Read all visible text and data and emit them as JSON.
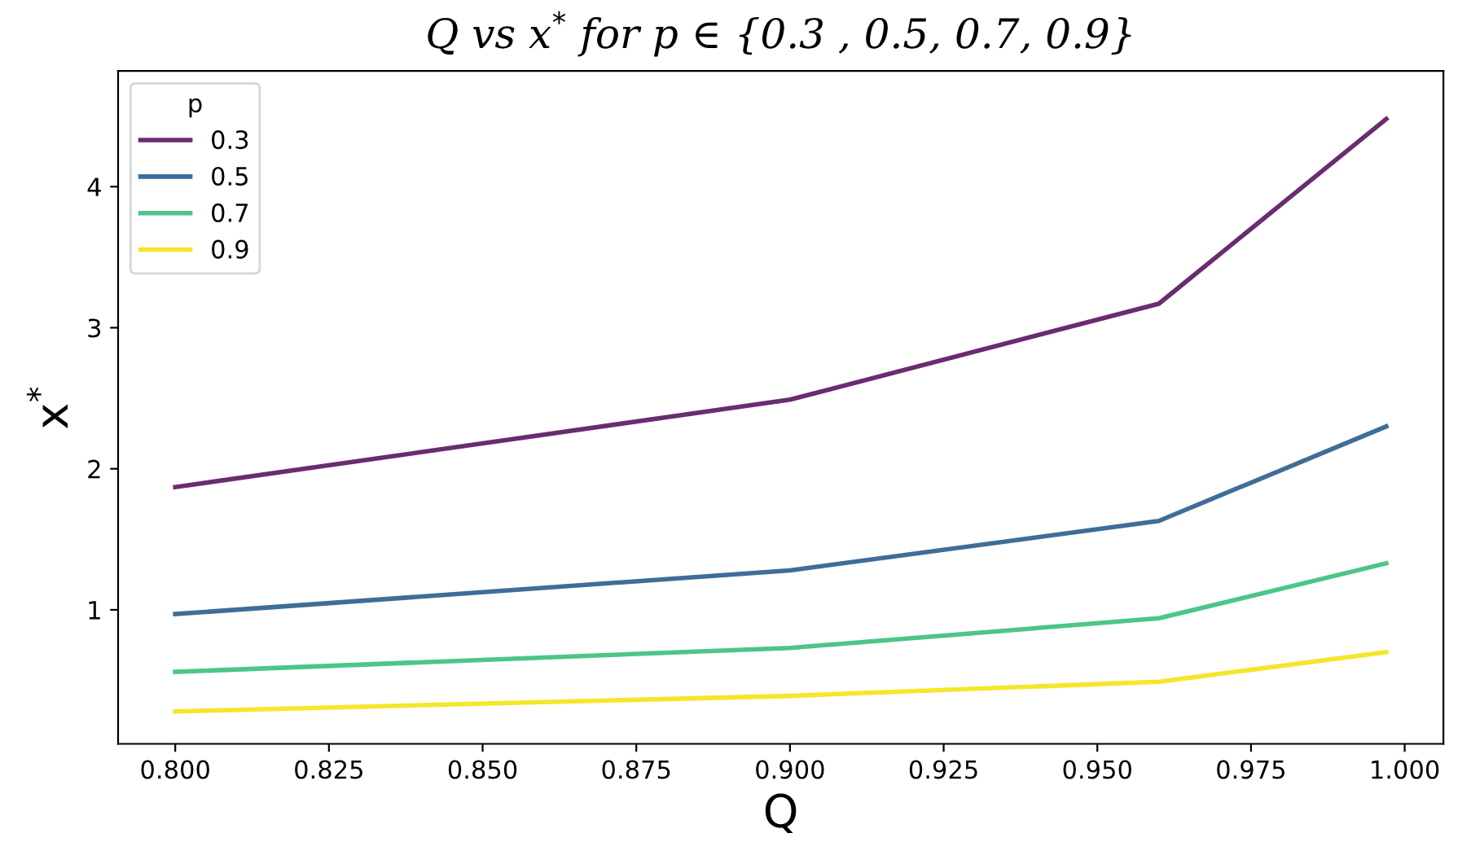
{
  "chart_data": {
    "type": "line",
    "title": "Q vs x$^{*}$ for p ∈ {0.3 , 0.5, 0.7, 0.9}",
    "xlabel": "Q",
    "ylabel": "x$^{*}$",
    "legend_title": "p",
    "legend": "top left",
    "grid": false,
    "x": [
      0.8,
      0.9,
      0.96,
      0.997
    ],
    "xlim": [
      0.7907,
      1.0063
    ],
    "xticks": [
      {
        "value": 0.8,
        "label": "0.800"
      },
      {
        "value": 0.825,
        "label": "0.825"
      },
      {
        "value": 0.85,
        "label": "0.850"
      },
      {
        "value": 0.875,
        "label": "0.875"
      },
      {
        "value": 0.9,
        "label": "0.900"
      },
      {
        "value": 0.925,
        "label": "0.925"
      },
      {
        "value": 0.95,
        "label": "0.950"
      },
      {
        "value": 0.975,
        "label": "0.975"
      },
      {
        "value": 1.0,
        "label": "1.000"
      }
    ],
    "ylim": [
      0.05,
      4.82
    ],
    "yticks": [
      1,
      2,
      3,
      4
    ],
    "series": [
      {
        "name": "0.3",
        "color": "#6a2c70",
        "values": [
          1.87,
          2.49,
          3.17,
          4.48
        ]
      },
      {
        "name": "0.5",
        "color": "#3e6e98",
        "values": [
          0.97,
          1.28,
          1.63,
          2.3
        ]
      },
      {
        "name": "0.7",
        "color": "#4cc688",
        "values": [
          0.56,
          0.73,
          0.94,
          1.33
        ]
      },
      {
        "name": "0.9",
        "color": "#f5e62a",
        "values": [
          0.28,
          0.39,
          0.49,
          0.7
        ]
      }
    ]
  }
}
